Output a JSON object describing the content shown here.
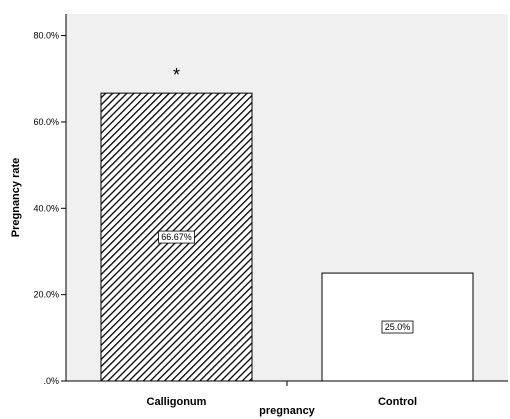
{
  "chart_data": {
    "type": "bar",
    "title": "",
    "xlabel": "pregnancy",
    "ylabel": "Pregnancy rate",
    "categories": [
      "Calligonum",
      "Control"
    ],
    "values": [
      66.67,
      25.0
    ],
    "data_labels": [
      "66.67%",
      "25.0%"
    ],
    "ylim": [
      0,
      85
    ],
    "yticks": [
      0,
      20,
      40,
      60,
      80
    ],
    "ytick_labels": [
      ".0%",
      "20.0%",
      "40.0%",
      "60.0%",
      "80.0%"
    ],
    "bar_styles": [
      "hatched",
      "white"
    ],
    "annotations": [
      {
        "category": "Calligonum",
        "text": "*"
      }
    ],
    "grid": false,
    "legend": "none",
    "colors": {
      "plot_background": "#f0f0f0",
      "bar_outline": "#000000",
      "bar_fill_plain": "#ffffff",
      "hatch": "#000000"
    }
  }
}
